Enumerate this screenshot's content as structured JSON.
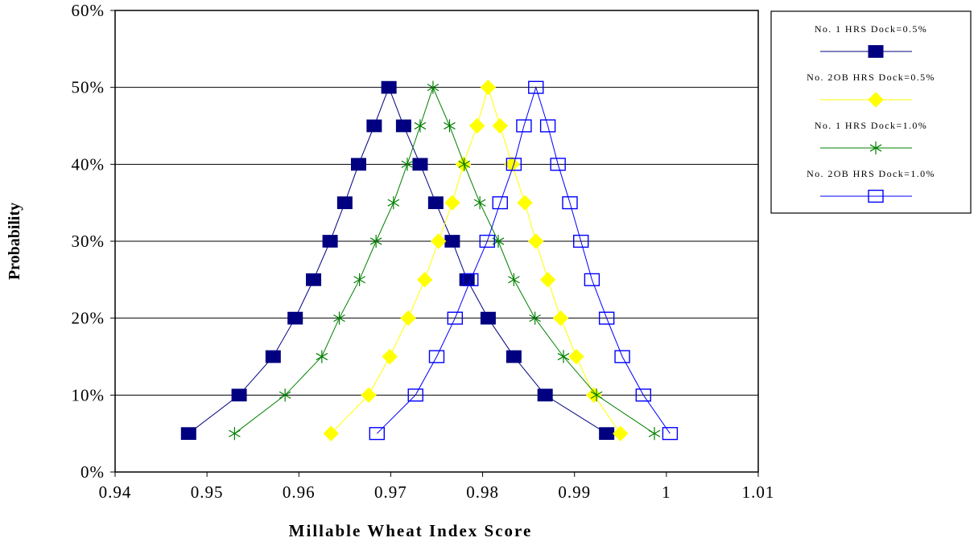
{
  "chart_data": {
    "type": "line",
    "title": "",
    "xlabel": "Millable Wheat Index Score",
    "ylabel": "Probability",
    "xlim": [
      0.94,
      1.01
    ],
    "ylim": [
      0,
      0.6
    ],
    "x_ticks": [
      0.94,
      0.95,
      0.96,
      0.97,
      0.98,
      0.99,
      1.0,
      1.01
    ],
    "x_tick_labels": [
      "0.94",
      "0.95",
      "0.96",
      "0.97",
      "0.98",
      "0.99",
      "1",
      "1.01"
    ],
    "y_ticks": [
      0,
      0.1,
      0.2,
      0.3,
      0.4,
      0.5,
      0.6
    ],
    "y_tick_labels": [
      "0%",
      "10%",
      "20%",
      "30%",
      "40%",
      "50%",
      "60%"
    ],
    "grid": "horizontal",
    "legend_position": "right",
    "series": [
      {
        "name": "No. 1 HRS Dock=0.5%",
        "color": "#000080",
        "marker": "filled-square",
        "points": [
          [
            0.948,
            0.05
          ],
          [
            0.9535,
            0.1
          ],
          [
            0.9572,
            0.15
          ],
          [
            0.9596,
            0.2
          ],
          [
            0.9616,
            0.25
          ],
          [
            0.9634,
            0.3
          ],
          [
            0.965,
            0.35
          ],
          [
            0.9665,
            0.4
          ],
          [
            0.9682,
            0.45
          ],
          [
            0.9698,
            0.5
          ],
          [
            0.9714,
            0.45
          ],
          [
            0.9732,
            0.4
          ],
          [
            0.9749,
            0.35
          ],
          [
            0.9767,
            0.3
          ],
          [
            0.9783,
            0.25
          ],
          [
            0.9806,
            0.2
          ],
          [
            0.9834,
            0.15
          ],
          [
            0.9868,
            0.1
          ],
          [
            0.9935,
            0.05
          ]
        ]
      },
      {
        "name": "No. 2OB HRS Dock=0.5%",
        "color": "#FFFF00",
        "marker": "filled-diamond",
        "points": [
          [
            0.9635,
            0.05
          ],
          [
            0.9676,
            0.1
          ],
          [
            0.9699,
            0.15
          ],
          [
            0.9719,
            0.2
          ],
          [
            0.9737,
            0.25
          ],
          [
            0.9752,
            0.3
          ],
          [
            0.9767,
            0.35
          ],
          [
            0.9779,
            0.4
          ],
          [
            0.9794,
            0.45
          ],
          [
            0.9806,
            0.5
          ],
          [
            0.9819,
            0.45
          ],
          [
            0.9832,
            0.4
          ],
          [
            0.9846,
            0.35
          ],
          [
            0.9858,
            0.3
          ],
          [
            0.9871,
            0.25
          ],
          [
            0.9885,
            0.2
          ],
          [
            0.9902,
            0.15
          ],
          [
            0.9921,
            0.1
          ],
          [
            0.995,
            0.05
          ]
        ]
      },
      {
        "name": "No. 1 HRS Dock=1.0%",
        "color": "#008000",
        "marker": "asterisk",
        "points": [
          [
            0.953,
            0.05
          ],
          [
            0.9585,
            0.1
          ],
          [
            0.9625,
            0.15
          ],
          [
            0.9644,
            0.2
          ],
          [
            0.9666,
            0.25
          ],
          [
            0.9684,
            0.3
          ],
          [
            0.9703,
            0.35
          ],
          [
            0.9718,
            0.4
          ],
          [
            0.9732,
            0.45
          ],
          [
            0.9746,
            0.5
          ],
          [
            0.9764,
            0.45
          ],
          [
            0.978,
            0.4
          ],
          [
            0.9797,
            0.35
          ],
          [
            0.9817,
            0.3
          ],
          [
            0.9834,
            0.25
          ],
          [
            0.9857,
            0.2
          ],
          [
            0.9888,
            0.15
          ],
          [
            0.9924,
            0.1
          ],
          [
            0.9987,
            0.05
          ]
        ]
      },
      {
        "name": "No. 2OB HRS Dock=1.0%",
        "color": "#0000FF",
        "marker": "open-square",
        "points": [
          [
            0.9685,
            0.05
          ],
          [
            0.9727,
            0.1
          ],
          [
            0.975,
            0.15
          ],
          [
            0.977,
            0.2
          ],
          [
            0.9787,
            0.25
          ],
          [
            0.9805,
            0.3
          ],
          [
            0.9819,
            0.35
          ],
          [
            0.9834,
            0.4
          ],
          [
            0.9845,
            0.45
          ],
          [
            0.9858,
            0.5
          ],
          [
            0.9871,
            0.45
          ],
          [
            0.9882,
            0.4
          ],
          [
            0.9895,
            0.35
          ],
          [
            0.9907,
            0.3
          ],
          [
            0.9919,
            0.25
          ],
          [
            0.9935,
            0.2
          ],
          [
            0.9952,
            0.15
          ],
          [
            0.9975,
            0.1
          ],
          [
            1.0004,
            0.05
          ]
        ]
      }
    ]
  }
}
